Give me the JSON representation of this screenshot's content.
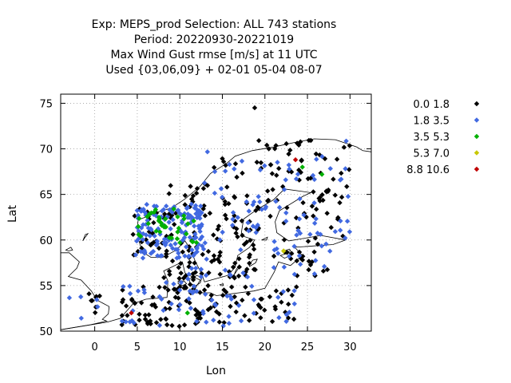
{
  "chart_data": {
    "type": "scatter",
    "title_lines": [
      "Exp: MEPS_prod   Selection: ALL    743 stations",
      "Period: 20220930-20221019",
      "Max Wind Gust rmse [m/s] at  11 UTC",
      "Used {03,06,09} + 02-01 05-04 08-07"
    ],
    "xlabel": "Lon",
    "ylabel": "Lat",
    "xlim": [
      -4,
      32.5
    ],
    "ylim": [
      50,
      76
    ],
    "xticks": [
      0,
      5,
      10,
      15,
      20,
      25,
      30
    ],
    "yticks": [
      50,
      55,
      60,
      65,
      70,
      75
    ],
    "grid": true,
    "legend_position": "right",
    "classes": [
      {
        "label": "0.0 1.8",
        "color": "#000000",
        "count": 380
      },
      {
        "label": "1.8 3.5",
        "color": "#4169e1",
        "count": 310
      },
      {
        "label": "3.5 5.3",
        "color": "#00b000",
        "count": 40
      },
      {
        "label": "5.3 7.0",
        "color": "#c8c800",
        "count": 1
      },
      {
        "label": "8.8 10.6",
        "color": "#c00000",
        "count": 2
      }
    ],
    "highlight_points": [
      {
        "class": 3,
        "lon": 22.2,
        "lat": 58.8
      },
      {
        "class": 4,
        "lon": 4.3,
        "lat": 52.0
      },
      {
        "class": 4,
        "lon": 23.6,
        "lat": 68.8
      },
      {
        "class": 0,
        "lon": 18.8,
        "lat": 74.5
      },
      {
        "class": 2,
        "lon": 7.6,
        "lat": 62.3
      },
      {
        "class": 2,
        "lon": 5.4,
        "lat": 60.4
      },
      {
        "class": 2,
        "lon": 9.3,
        "lat": 63.4
      },
      {
        "class": 2,
        "lon": 10.9,
        "lat": 52.0
      },
      {
        "class": 2,
        "lon": 26.7,
        "lat": 67.2
      },
      {
        "class": 2,
        "lon": 24.4,
        "lat": 68.0
      }
    ]
  }
}
